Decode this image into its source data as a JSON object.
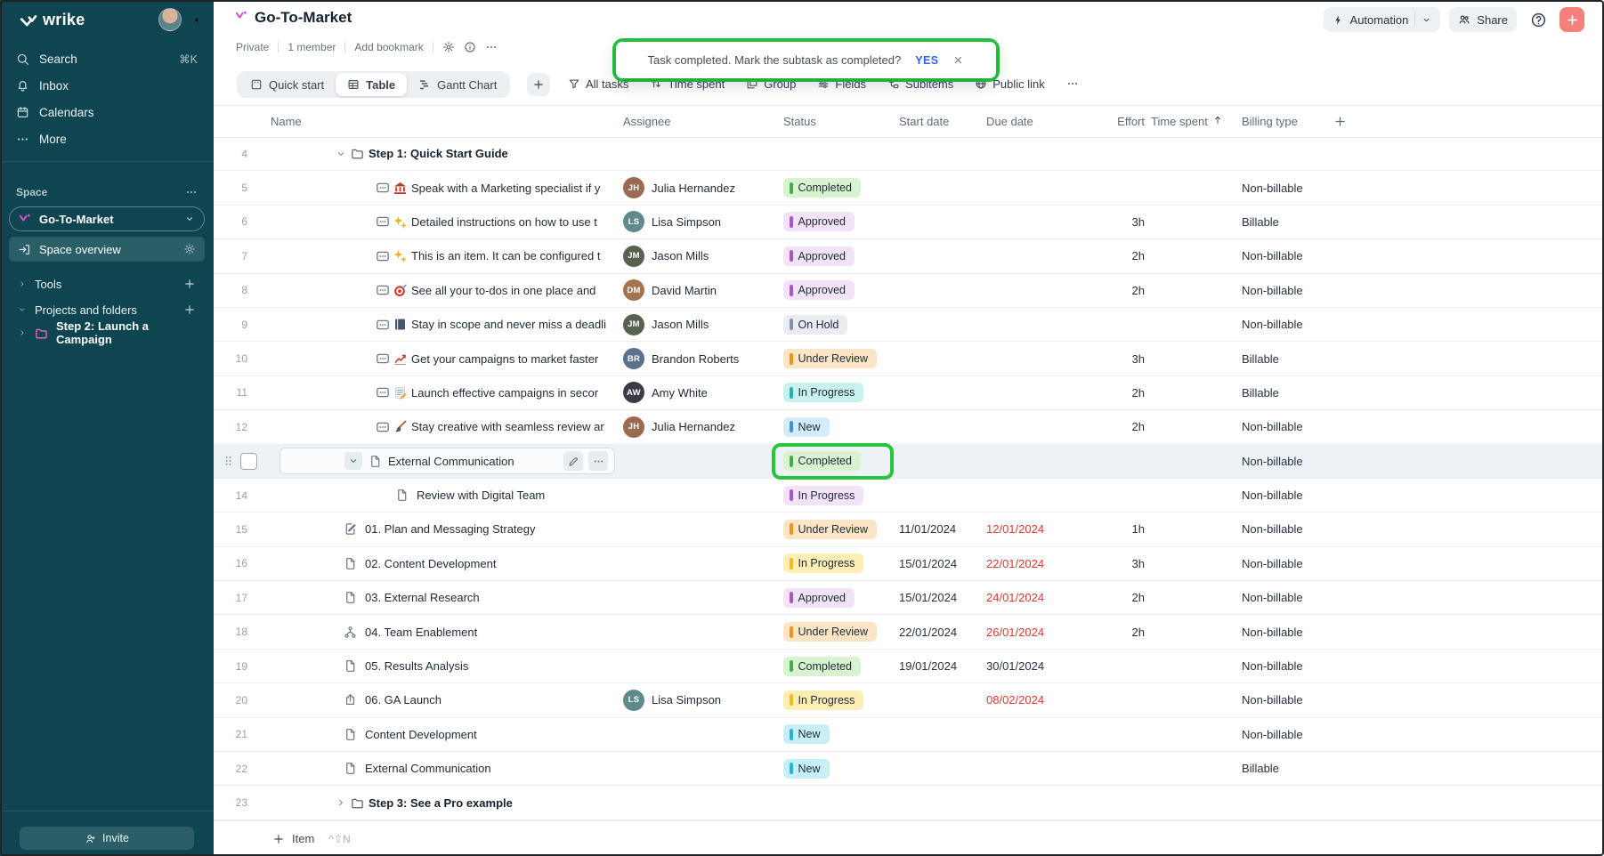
{
  "brand": {
    "name": "wrike"
  },
  "sidebar": {
    "nav": [
      {
        "id": "search",
        "label": "Search",
        "icon": "search",
        "shortcut": "⌘K"
      },
      {
        "id": "inbox",
        "label": "Inbox",
        "icon": "bell",
        "shortcut": ""
      },
      {
        "id": "calendars",
        "label": "Calendars",
        "icon": "calendar",
        "shortcut": ""
      },
      {
        "id": "more",
        "label": "More",
        "icon": "dots",
        "shortcut": ""
      }
    ],
    "space_section_label": "Space",
    "space_name": "Go-To-Market",
    "overview_label": "Space overview",
    "tools_label": "Tools",
    "projects_label": "Projects and folders",
    "project_item": "Step 2: Launch a Campaign",
    "invite_label": "Invite"
  },
  "header": {
    "title": "Go-To-Market",
    "meta": [
      "Private",
      "1 member",
      "Add bookmark"
    ],
    "automation_label": "Automation",
    "share_label": "Share"
  },
  "toast": {
    "message": "Task completed. Mark the subtask as completed?",
    "confirm_label": "YES"
  },
  "viewbar": {
    "tabs": [
      {
        "label": "Quick start",
        "icon": "board",
        "active": false
      },
      {
        "label": "Table",
        "icon": "grid",
        "active": true
      },
      {
        "label": "Gantt Chart",
        "icon": "gantt",
        "active": false
      }
    ],
    "filter": {
      "label": "All tasks",
      "icon": "filter"
    },
    "tools": [
      {
        "label": "Time spent",
        "icon": "updown"
      },
      {
        "label": "Group",
        "icon": "group"
      },
      {
        "label": "Fields",
        "icon": "fields"
      },
      {
        "label": "Subitems",
        "icon": "subitems"
      },
      {
        "label": "Public link",
        "icon": "globe"
      }
    ]
  },
  "table": {
    "columns": [
      "Name",
      "Assignee",
      "Status",
      "Start date",
      "Due date",
      "Effort",
      "Time spent",
      "Billing type"
    ],
    "sort_column": "Time spent",
    "sort_direction": "asc",
    "rows": [
      {
        "num": "4",
        "kind": "folder",
        "chevron": "down",
        "name": "Step 1: Quick Start Guide"
      },
      {
        "num": "5",
        "kind": "task1",
        "emoji": "bank",
        "name": "Speak with a Marketing specialist if y",
        "assignee": "Julia Hernandez",
        "status": "Completed",
        "style": "green",
        "billing": "Non-billable"
      },
      {
        "num": "6",
        "kind": "task1",
        "emoji": "sparkles",
        "name": "Detailed instructions on how to use t",
        "assignee": "Lisa Simpson",
        "status": "Approved",
        "style": "purple",
        "effort": "3h",
        "billing": "Billable"
      },
      {
        "num": "7",
        "kind": "task1",
        "emoji": "sparkles",
        "name": "This is an item. It can be configured t",
        "assignee": "Jason Mills",
        "status": "Approved",
        "style": "purple",
        "effort": "2h",
        "billing": "Non-billable"
      },
      {
        "num": "8",
        "kind": "task1",
        "emoji": "target",
        "name": "See all your to-dos in one place and",
        "assignee": "David Martin",
        "status": "Approved",
        "style": "purple",
        "effort": "2h",
        "billing": "Non-billable"
      },
      {
        "num": "9",
        "kind": "task1",
        "emoji": "book",
        "name": "Stay in scope and never miss a deadli",
        "assignee": "Jason Mills",
        "status": "On Hold",
        "style": "gray",
        "billing": "Non-billable"
      },
      {
        "num": "10",
        "kind": "task1",
        "emoji": "chart",
        "name": "Get your campaigns to market faster",
        "assignee": "Brandon Roberts",
        "status": "Under Review",
        "style": "orange",
        "effort": "3h",
        "billing": "Billable"
      },
      {
        "num": "11",
        "kind": "task1",
        "emoji": "memo",
        "name": "Launch effective campaigns in secor",
        "assignee": "Amy White",
        "status": "In Progress",
        "style": "cyan",
        "effort": "2h",
        "billing": "Billable"
      },
      {
        "num": "12",
        "kind": "task1",
        "emoji": "brush",
        "name": "Stay creative with seamless review ar",
        "assignee": "Julia Hernandez",
        "status": "New",
        "style": "blue",
        "effort": "2h",
        "billing": "Non-billable"
      },
      {
        "num": "13",
        "kind": "selected",
        "name": "External Communication",
        "status": "Completed",
        "style": "green",
        "annotated": true,
        "billing": "Non-billable"
      },
      {
        "num": "14",
        "kind": "subtask",
        "icon": "doc",
        "name": "Review with Digital Team",
        "status": "In Progress",
        "style": "purple",
        "billing": "Non-billable"
      },
      {
        "num": "15",
        "kind": "root",
        "icon": "docedit",
        "name": "01. Plan and Messaging Strategy",
        "status": "Under Review",
        "style": "orange",
        "start": "11/01/2024",
        "due": "12/01/2024",
        "due_overdue": true,
        "effort": "1h",
        "billing": "Non-billable"
      },
      {
        "num": "16",
        "kind": "root",
        "icon": "doc",
        "name": "02. Content Development",
        "status": "In Progress",
        "style": "yellow",
        "start": "15/01/2024",
        "due": "22/01/2024",
        "due_overdue": true,
        "effort": "3h",
        "billing": "Non-billable"
      },
      {
        "num": "17",
        "kind": "root",
        "icon": "doc",
        "name": "03. External Research",
        "status": "Approved",
        "style": "purple",
        "start": "15/01/2024",
        "due": "24/01/2024",
        "due_overdue": true,
        "effort": "2h",
        "billing": "Non-billable"
      },
      {
        "num": "18",
        "kind": "root",
        "icon": "workflow",
        "name": "04. Team Enablement",
        "status": "Under Review",
        "style": "orange",
        "start": "22/01/2024",
        "due": "26/01/2024",
        "due_overdue": true,
        "effort": "2h",
        "billing": "Non-billable"
      },
      {
        "num": "19",
        "kind": "root",
        "icon": "doc",
        "name": "05. Results Analysis",
        "status": "Completed",
        "style": "green",
        "start": "19/01/2024",
        "due": "30/01/2024",
        "due_overdue": false,
        "billing": "Non-billable"
      },
      {
        "num": "20",
        "kind": "root",
        "icon": "shareup",
        "name": "06. GA Launch",
        "assignee": "Lisa Simpson",
        "status": "In Progress",
        "style": "yellow",
        "due": "08/02/2024",
        "due_overdue": true,
        "billing": "Non-billable"
      },
      {
        "num": "21",
        "kind": "root",
        "icon": "doc",
        "name": "Content Development",
        "status": "New",
        "style": "teal",
        "billing": "Non-billable"
      },
      {
        "num": "22",
        "kind": "root",
        "icon": "doc",
        "name": "External Communication",
        "status": "New",
        "style": "teal",
        "billing": "Billable"
      },
      {
        "num": "23",
        "kind": "folder",
        "chevron": "right",
        "name": "Step 3: See a Pro example"
      }
    ]
  },
  "footer": {
    "add_label": "Item",
    "shortcut": "^⇧N"
  },
  "status_styles": {
    "green": {
      "bg": "#d9f2cf",
      "bar": "#47ab53"
    },
    "purple": {
      "bg": "#f2e3f9",
      "bar": "#a358ce"
    },
    "gray": {
      "bg": "#e9ecf0",
      "bar": "#8494a5"
    },
    "orange": {
      "bg": "#fbe5c4",
      "bar": "#ee9220"
    },
    "cyan": {
      "bg": "#c9f2ee",
      "bar": "#1cb8ab"
    },
    "yellow": {
      "bg": "#fceeb5",
      "bar": "#eebd20"
    },
    "blue": {
      "bg": "#d4ebfb",
      "bar": "#3398ec"
    },
    "teal": {
      "bg": "#c9eff6",
      "bar": "#27b5d8"
    }
  },
  "people": {
    "Julia Hernandez": {
      "initials": "JH",
      "color": "#9a6b52"
    },
    "Lisa Simpson": {
      "initials": "LS",
      "color": "#5f8a8b"
    },
    "Jason Mills": {
      "initials": "JM",
      "color": "#56624e"
    },
    "David Martin": {
      "initials": "DM",
      "color": "#a5744f"
    },
    "Brandon Roberts": {
      "initials": "BR",
      "color": "#5a708c"
    },
    "Amy White": {
      "initials": "AW",
      "color": "#3e3a45"
    }
  },
  "colors": {
    "annotation": "#25c53e",
    "sidebar_bg": "#0f4550",
    "add_button": "#f5807c",
    "accent_link": "#2d66f5",
    "overdue": "#de3a30"
  }
}
